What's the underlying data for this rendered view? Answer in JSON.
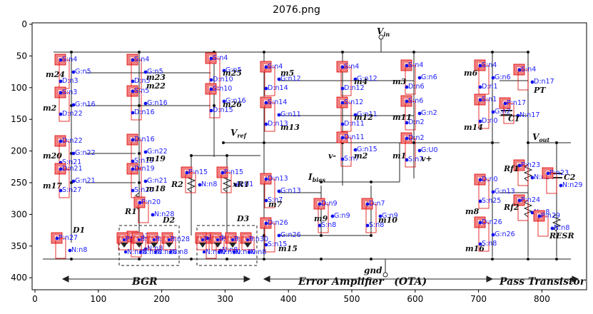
{
  "title": "2076.png",
  "axes": {
    "x_ticks": [
      "0",
      "100",
      "200",
      "300",
      "400",
      "500",
      "600",
      "700",
      "800"
    ],
    "y_ticks": [
      "0",
      "50",
      "100",
      "150",
      "200",
      "250",
      "300",
      "350",
      "400"
    ]
  },
  "schematic": {
    "nodes": {
      "vin": "V",
      "vin_sub": "in",
      "vref": "V",
      "vref_sub": "ref",
      "vout": "V",
      "vout_sub": "out",
      "ibias": "I",
      "ibias_sub": "bias",
      "gnd": "gnd"
    },
    "sections": {
      "bgr": "BGR",
      "ota": "Error Amplifier   (OTA)",
      "pass": "Pass Transistor"
    },
    "device_labels": [
      {
        "id": "m24",
        "text": "m24"
      },
      {
        "id": "m2",
        "text": "m2"
      },
      {
        "id": "m20",
        "text": "m20"
      },
      {
        "id": "m17",
        "text": "m17"
      },
      {
        "id": "m23",
        "text": "m23"
      },
      {
        "id": "m22",
        "text": "m22"
      },
      {
        "id": "m19",
        "text": "m19"
      },
      {
        "id": "m18",
        "text": "m18"
      },
      {
        "id": "m25",
        "text": "m25"
      },
      {
        "id": "m26",
        "text": "m26"
      },
      {
        "id": "m5",
        "text": "m5"
      },
      {
        "id": "m13",
        "text": "m13"
      },
      {
        "id": "m4",
        "text": "m4"
      },
      {
        "id": "m12",
        "text": "m12"
      },
      {
        "id": "m2b",
        "text": "m2"
      },
      {
        "id": "m3",
        "text": "m3"
      },
      {
        "id": "m11",
        "text": "m11"
      },
      {
        "id": "m1",
        "text": "m1"
      },
      {
        "id": "m6",
        "text": "m6"
      },
      {
        "id": "m14",
        "text": "m14"
      },
      {
        "id": "m7",
        "text": "m7"
      },
      {
        "id": "m9",
        "text": "m9"
      },
      {
        "id": "m10",
        "text": "m10"
      },
      {
        "id": "m15",
        "text": "m15"
      },
      {
        "id": "m8",
        "text": "m8"
      },
      {
        "id": "m16",
        "text": "m16"
      },
      {
        "id": "PT",
        "text": "PT"
      },
      {
        "id": "C1",
        "text": "C1"
      },
      {
        "id": "R1",
        "text": "R1"
      },
      {
        "id": "R2",
        "text": "R2"
      },
      {
        "id": "xR1",
        "text": "xR1"
      },
      {
        "id": "D1",
        "text": "D1"
      },
      {
        "id": "D2",
        "text": "D2"
      },
      {
        "id": "D3",
        "text": "D3"
      },
      {
        "id": "Rf1",
        "text": "Rf1"
      },
      {
        "id": "Rf2",
        "text": "Rf2"
      },
      {
        "id": "C2",
        "text": "C2"
      },
      {
        "id": "RESR",
        "text": "RESR"
      },
      {
        "id": "vminus",
        "text": "v-"
      },
      {
        "id": "vplus",
        "text": "v+"
      }
    ],
    "annotations": [
      {
        "tag": "P",
        "labels": [
          "S:n4",
          "G:n5",
          "D:n3"
        ]
      },
      {
        "tag": "P",
        "labels": [
          "S:n3",
          "G:n16",
          "D:n22"
        ]
      },
      {
        "tag": "N",
        "labels": [
          "D:n22",
          "G:n22",
          "S:n21"
        ]
      },
      {
        "tag": "N",
        "labels": [
          "D:n21",
          "G:n21",
          "S:n27"
        ]
      },
      {
        "tag": "D",
        "labels": [
          "P:n27",
          "N:n8"
        ]
      },
      {
        "tag": "P",
        "labels": [
          "S:n4",
          "G:n5",
          "D:n5"
        ]
      },
      {
        "tag": "P",
        "labels": [
          "S:n5",
          "G:n16",
          "D:n16"
        ]
      },
      {
        "tag": "N",
        "labels": [
          "D:n16",
          "G:n22",
          "S:n19"
        ]
      },
      {
        "tag": "N",
        "labels": [
          "D:n19",
          "G:n21",
          "S:n20"
        ]
      },
      {
        "tag": "R",
        "labels": [
          "P:n20",
          "N:n28"
        ]
      },
      {
        "tag": "D",
        "labels": [
          "P:n28",
          "N:n8"
        ]
      },
      {
        "tag": "P",
        "labels": [
          "S:n4",
          "G:n5",
          "D:n10"
        ]
      },
      {
        "tag": "P",
        "labels": [
          "S:n10",
          "G:n16",
          "D:n15"
        ]
      },
      {
        "tag": "R",
        "labels": [
          "P:n15",
          "N:n8"
        ]
      },
      {
        "tag": "R",
        "labels": [
          "P:n15",
          "N:U1"
        ]
      },
      {
        "tag": "D",
        "labels": [
          "P:n30",
          "N:n8"
        ]
      },
      {
        "tag": "P",
        "labels": [
          "S:n4",
          "G:n12",
          "D:n14"
        ]
      },
      {
        "tag": "P",
        "labels": [
          "S:n14",
          "G:n11",
          "D:n13"
        ]
      },
      {
        "tag": "N",
        "labels": [
          "D:n13",
          "G:n13",
          "S:n7"
        ]
      },
      {
        "tag": "N",
        "labels": [
          "D:n26",
          "G:n26",
          "S:n15"
        ]
      },
      {
        "tag": "P",
        "labels": [
          "S:n4",
          "G:n12",
          "D:n12"
        ]
      },
      {
        "tag": "P",
        "labels": [
          "S:n12",
          "G:n11",
          "D:n11"
        ]
      },
      {
        "tag": "N",
        "labels": [
          "D:n11",
          "G:n15",
          "S:n7"
        ]
      },
      {
        "tag": "N",
        "labels": [
          "D:n9",
          "G:n9",
          "S:n8"
        ]
      },
      {
        "tag": "N",
        "labels": [
          "D:n7",
          "G:n9",
          "S:n8"
        ]
      },
      {
        "tag": "P",
        "labels": [
          "S:n4",
          "G:n6",
          "D:n6"
        ]
      },
      {
        "tag": "P",
        "labels": [
          "S:n6",
          "G:n2",
          "D:n2"
        ]
      },
      {
        "tag": "N",
        "labels": [
          "D:n2",
          "G:U0",
          "S:n7"
        ]
      },
      {
        "tag": "P",
        "labels": [
          "S:n4",
          "G:n6",
          "D:n1"
        ]
      },
      {
        "tag": "P",
        "labels": [
          "S:n1",
          "G:n2",
          "D:n0"
        ]
      },
      {
        "tag": "P",
        "labels": [
          "S:n4",
          "D:n17"
        ]
      },
      {
        "tag": "C",
        "labels": [
          "P:n17",
          "N:n17"
        ]
      },
      {
        "tag": "N",
        "labels": [
          "D:n0",
          "G:n13",
          "S:n25"
        ]
      },
      {
        "tag": "N",
        "labels": [
          "D:n26",
          "G:n26",
          "S:n8"
        ]
      },
      {
        "tag": "R",
        "labels": [
          "P:n23",
          "N:n24"
        ]
      },
      {
        "tag": "R",
        "labels": [
          "P:n24",
          "N:n8"
        ]
      },
      {
        "tag": "C",
        "labels": [
          "P:n23",
          "N:n29"
        ]
      },
      {
        "tag": "R",
        "labels": [
          "P:n29",
          "N:n8"
        ]
      }
    ],
    "diode_chain": {
      "d2": [
        {
          "p": "P:n28",
          "n": "N:n28"
        },
        {
          "p": "P:n28",
          "n": "N:n28"
        },
        {
          "p": "P:n28",
          "n": "N:n28"
        },
        {
          "p": "P:n28",
          "n": "N:n8"
        }
      ],
      "d3": [
        {
          "p": "P:n30",
          "n": "N:n30"
        },
        {
          "p": "P:n30",
          "n": "N:n30"
        },
        {
          "p": "P:n30",
          "n": "N:n30"
        },
        {
          "p": "P:n30",
          "n": "N:n8"
        }
      ]
    }
  },
  "colors": {
    "annotation_fill": "#f08080",
    "annotation_border": "#e00000",
    "label_text": "#1a1aff",
    "dot": "#1010ee"
  }
}
